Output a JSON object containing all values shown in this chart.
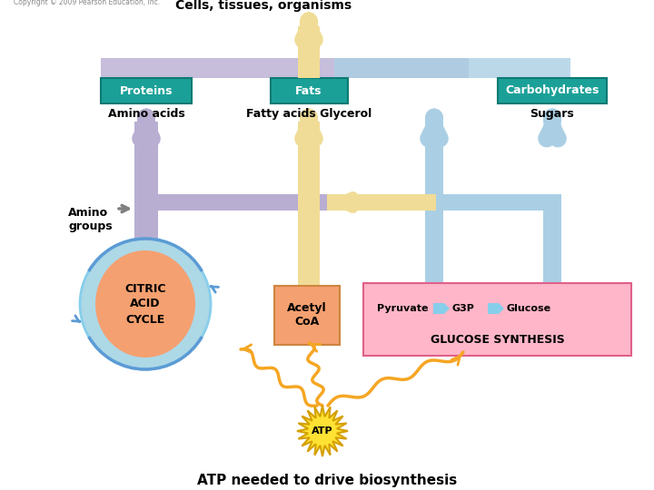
{
  "title": "ATP needed to drive biosynthesis",
  "bg_color": "#ffffff",
  "atp_star_color": "#FFD700",
  "atp_text": "ATP",
  "citric_text": "CITRIC\nACID\nCYCLE",
  "acetyl_text": "Acetyl\nCoA",
  "glucose_title": "GLUCOSE SYNTHESIS",
  "glucose_text": "Pyruvate",
  "g3p_text": "G3P",
  "glucose_end": "Glucose",
  "wavy_color": "#F5A623",
  "pipe_purple_color": "#B8AED2",
  "pipe_yellow_color": "#F0DC96",
  "pipe_blue_color": "#AACFE4",
  "amino_groups_text": "Amino\ngroups",
  "amino_acids_text": "Amino acids",
  "fatty_acids_text": "Fatty acids Glycerol",
  "sugars_text": "Sugars",
  "proteins_text": "Proteins",
  "fats_text": "Fats",
  "carbo_text": "Carbohydrates",
  "cells_text": "Cells, tissues, organisms",
  "copyright": "Copyright © 2009 Pearson Education, Inc."
}
